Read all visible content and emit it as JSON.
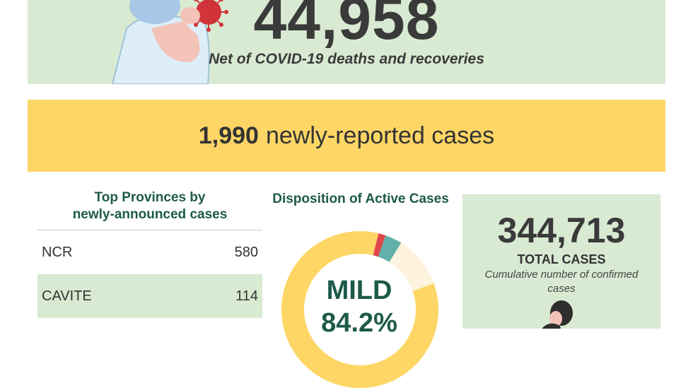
{
  "active": {
    "count": "44,958",
    "caption": "Net of COVID-19 deaths and recoveries"
  },
  "new_cases": {
    "count": "1,990",
    "label": "newly-reported cases"
  },
  "provinces": {
    "title_line1": "Top Provinces by",
    "title_line2": "newly-announced cases",
    "rows": [
      {
        "name": "NCR",
        "value": "580"
      },
      {
        "name": "CAVITE",
        "value": "114"
      }
    ]
  },
  "disposition": {
    "title": "Disposition of Active Cases",
    "label_line1": "MILD",
    "label_line2": "84.2%",
    "segments": [
      {
        "name": "mild",
        "share": 0.842,
        "color": "#fdd665"
      },
      {
        "name": "red",
        "share": 0.015,
        "color": "#e0454b"
      },
      {
        "name": "teal",
        "share": 0.035,
        "color": "#62b0a9"
      },
      {
        "name": "light",
        "share": 0.108,
        "color": "#fdf3de"
      }
    ]
  },
  "total": {
    "count": "344,713",
    "label": "TOTAL CASES",
    "description": "Cumulative number of confirmed cases"
  },
  "colors": {
    "green_panel": "#d9ead3",
    "yellow_panel": "#fdd665",
    "heading_green": "#1d5a4a",
    "virus_red": "#d0343a"
  }
}
